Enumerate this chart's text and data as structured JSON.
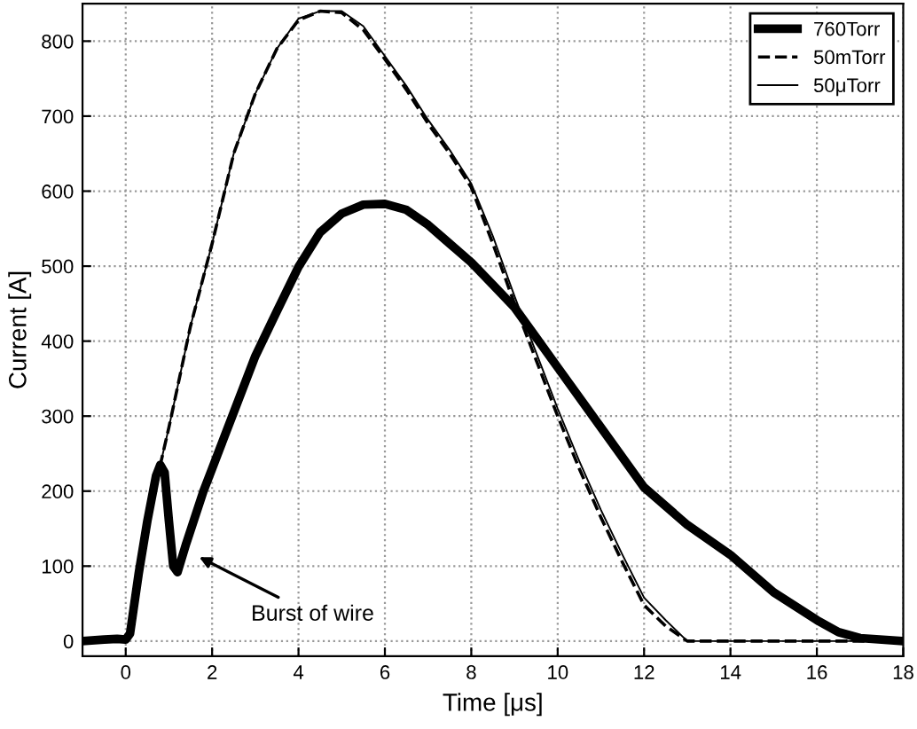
{
  "chart_data": {
    "type": "line",
    "xlabel": "Time [μs]",
    "ylabel": "Current [A]",
    "xlim": [
      -1,
      18
    ],
    "ylim": [
      -20,
      850
    ],
    "xticks": [
      0,
      2,
      4,
      6,
      8,
      10,
      12,
      14,
      16,
      18
    ],
    "yticks": [
      0,
      100,
      200,
      300,
      400,
      500,
      600,
      700,
      800
    ],
    "grid": true,
    "legend": "top right",
    "marker": "none",
    "annotations": [
      {
        "text": "Burst of wire",
        "x": 1.6,
        "y": 115
      }
    ],
    "series": [
      {
        "name": "760Torr",
        "color": "#000000",
        "line_style": "solid",
        "x": [
          -1,
          -0.5,
          -0.2,
          0,
          0.1,
          0.3,
          0.5,
          0.7,
          0.8,
          0.9,
          1.0,
          1.1,
          1.2,
          1.4,
          1.8,
          2,
          2.5,
          3,
          3.5,
          4,
          4.5,
          5,
          5.5,
          6,
          6.5,
          7,
          7.5,
          8,
          8.5,
          9,
          9.5,
          10,
          11,
          12,
          13,
          14,
          15,
          16,
          16.5,
          17,
          18
        ],
        "values": [
          0,
          2,
          3,
          2,
          10,
          90,
          160,
          220,
          235,
          225,
          160,
          100,
          92,
          130,
          200,
          230,
          305,
          380,
          440,
          499,
          545,
          570,
          582,
          583,
          575,
          555,
          530,
          505,
          475,
          445,
          405,
          365,
          285,
          205,
          155,
          115,
          65,
          28,
          12,
          4,
          0
        ]
      },
      {
        "name": "50mTorr",
        "color": "#000000",
        "line_style": "dashed",
        "x": [
          -1,
          -0.5,
          -0.2,
          0,
          0.1,
          0.3,
          0.5,
          0.7,
          0.8,
          1,
          1.5,
          2,
          2.5,
          3,
          3.5,
          4,
          4.5,
          5,
          5.5,
          6,
          6.5,
          7,
          7.5,
          8,
          8.5,
          9,
          9.5,
          10,
          10.5,
          11,
          11.5,
          12,
          12.5,
          13,
          15,
          18
        ],
        "values": [
          0,
          2,
          3,
          2,
          10,
          90,
          160,
          220,
          235,
          285,
          420,
          530,
          650,
          730,
          790,
          828,
          840,
          838,
          815,
          776,
          735,
          690,
          650,
          605,
          530,
          450,
          375,
          300,
          230,
          165,
          105,
          48,
          20,
          0,
          0,
          0
        ]
      },
      {
        "name": "50μTorr",
        "color": "#000000",
        "line_style": "solid",
        "x": [
          -1,
          -0.5,
          -0.2,
          0,
          0.1,
          0.3,
          0.5,
          0.7,
          0.8,
          1,
          1.5,
          2,
          2.5,
          3,
          3.5,
          4,
          4.5,
          5,
          5.5,
          6,
          6.5,
          7,
          7.5,
          8,
          8.5,
          9,
          9.5,
          10,
          10.5,
          11,
          11.5,
          12,
          12.5,
          13,
          15,
          18
        ],
        "values": [
          0,
          2,
          3,
          2,
          10,
          90,
          160,
          220,
          235,
          285,
          420,
          530,
          650,
          730,
          790,
          830,
          840,
          840,
          820,
          780,
          740,
          695,
          655,
          610,
          540,
          460,
          385,
          310,
          240,
          175,
          115,
          58,
          28,
          0,
          0,
          0
        ]
      }
    ]
  }
}
